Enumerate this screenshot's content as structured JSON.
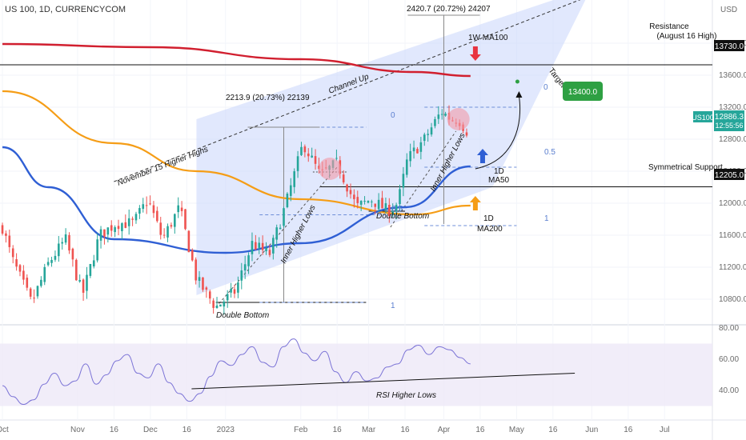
{
  "header": {
    "symbol_title": "US 100, 1D, CURRENCYCOM",
    "currency": "USD"
  },
  "colors": {
    "bull": "#26a69a",
    "bear": "#ef5350",
    "ma100w": "#d11f2f",
    "ma200": "#f59d16",
    "ma50": "#2f5fd4",
    "rsi": "#7b73d6",
    "channel": "#c9d6fb",
    "badge": "#2ea043",
    "priceTag": "#26a69a"
  },
  "chart_data": [
    {
      "type": "candlestick",
      "symbol": "US100",
      "timeframe": "1D",
      "y_axis": {
        "min": 10400,
        "max": 14400,
        "ticks": [
          10800,
          11200,
          11600,
          12000,
          12400,
          12800,
          13200,
          13600,
          14000
        ],
        "tick_labels": [
          "10800.0",
          "11200.0",
          "11600.0",
          "12000.0",
          "12400.0",
          "12800.0",
          "13200.0",
          "13600.0",
          "14000.0"
        ]
      },
      "x_axis": {
        "start": "2022-10-01",
        "end": "2023-07-10",
        "tick_labels": [
          {
            "date": "2022-10-01",
            "label": "Oct"
          },
          {
            "date": "2022-11-01",
            "label": "Nov"
          },
          {
            "date": "2022-11-16",
            "label": "16"
          },
          {
            "date": "2022-12-01",
            "label": "Dec"
          },
          {
            "date": "2022-12-16",
            "label": "16"
          },
          {
            "date": "2023-01-01",
            "label": "2023"
          },
          {
            "date": "2023-02-01",
            "label": "Feb"
          },
          {
            "date": "2023-02-16",
            "label": "16"
          },
          {
            "date": "2023-03-01",
            "label": "Mar"
          },
          {
            "date": "2023-03-16",
            "label": "16"
          },
          {
            "date": "2023-04-01",
            "label": "Apr"
          },
          {
            "date": "2023-04-16",
            "label": "16"
          },
          {
            "date": "2023-05-01",
            "label": "May"
          },
          {
            "date": "2023-05-16",
            "label": "16"
          },
          {
            "date": "2023-06-01",
            "label": "Jun"
          },
          {
            "date": "2023-06-16",
            "label": "16"
          },
          {
            "date": "2023-07-01",
            "label": "Jul"
          }
        ]
      },
      "price_path": [
        {
          "x": "2022-10-01",
          "y": 11700
        },
        {
          "x": "2022-10-05",
          "y": 11300
        },
        {
          "x": "2022-10-13",
          "y": 10750
        },
        {
          "x": "2022-10-20",
          "y": 11250
        },
        {
          "x": "2022-10-27",
          "y": 11550
        },
        {
          "x": "2022-11-03",
          "y": 10850
        },
        {
          "x": "2022-11-10",
          "y": 11600
        },
        {
          "x": "2022-11-17",
          "y": 11750
        },
        {
          "x": "2022-11-24",
          "y": 11750
        },
        {
          "x": "2022-11-30",
          "y": 12050
        },
        {
          "x": "2022-12-06",
          "y": 11550
        },
        {
          "x": "2022-12-13",
          "y": 11950
        },
        {
          "x": "2022-12-20",
          "y": 11050
        },
        {
          "x": "2022-12-28",
          "y": 10700
        },
        {
          "x": "2023-01-05",
          "y": 10900
        },
        {
          "x": "2023-01-12",
          "y": 11500
        },
        {
          "x": "2023-01-19",
          "y": 11350
        },
        {
          "x": "2023-01-26",
          "y": 12000
        },
        {
          "x": "2023-02-02",
          "y": 12750
        },
        {
          "x": "2023-02-09",
          "y": 12350
        },
        {
          "x": "2023-02-16",
          "y": 12500
        },
        {
          "x": "2023-02-24",
          "y": 11950
        },
        {
          "x": "2023-03-02",
          "y": 12050
        },
        {
          "x": "2023-03-09",
          "y": 11900
        },
        {
          "x": "2023-03-13",
          "y": 12000
        },
        {
          "x": "2023-03-17",
          "y": 12550
        },
        {
          "x": "2023-03-24",
          "y": 12800
        },
        {
          "x": "2023-03-31",
          "y": 13150
        },
        {
          "x": "2023-04-04",
          "y": 13050
        },
        {
          "x": "2023-04-07",
          "y": 13050
        },
        {
          "x": "2023-04-11",
          "y": 12880
        }
      ],
      "moving_averages": [
        {
          "name": "1W MA100",
          "points": [
            {
              "x": "2022-10-01",
              "y": 13990
            },
            {
              "x": "2022-12-01",
              "y": 13950
            },
            {
              "x": "2023-02-01",
              "y": 13800
            },
            {
              "x": "2023-03-20",
              "y": 13640
            },
            {
              "x": "2023-04-12",
              "y": 13590
            }
          ]
        },
        {
          "name": "1D MA200",
          "points": [
            {
              "x": "2022-10-01",
              "y": 13400
            },
            {
              "x": "2022-11-16",
              "y": 12750
            },
            {
              "x": "2022-12-20",
              "y": 12400
            },
            {
              "x": "2023-02-01",
              "y": 12050
            },
            {
              "x": "2023-03-20",
              "y": 11860
            },
            {
              "x": "2023-04-12",
              "y": 11970
            }
          ]
        },
        {
          "name": "1D MA50",
          "points": [
            {
              "x": "2022-10-01",
              "y": 12700
            },
            {
              "x": "2022-10-20",
              "y": 12200
            },
            {
              "x": "2022-11-16",
              "y": 11550
            },
            {
              "x": "2023-01-01",
              "y": 11380
            },
            {
              "x": "2023-02-01",
              "y": 11500
            },
            {
              "x": "2023-03-16",
              "y": 11950
            },
            {
              "x": "2023-04-12",
              "y": 12460
            }
          ]
        }
      ],
      "channel": {
        "points": [
          {
            "x": "2022-12-20",
            "y": 10850
          },
          {
            "x": "2023-04-21",
            "y": 12200
          },
          {
            "x": "2023-06-01",
            "y": 14700
          },
          {
            "x": "2022-12-20",
            "y": 13050
          }
        ]
      },
      "horizontal_levels": [
        {
          "label": "Resistance",
          "sub_label": "(August 16 High)",
          "value": 13730,
          "tag": "13730.0"
        },
        {
          "label": "Symmetrical Support",
          "value": 12205,
          "tag": "12205.0"
        }
      ],
      "annotations": [
        {
          "text": "November 15 Higher Highs"
        },
        {
          "text": "Channel Up"
        },
        {
          "text": "Inner Higher Lows"
        },
        {
          "text": "Inner Higher Lows"
        },
        {
          "text": "Double Bottom"
        },
        {
          "text": "Double Bottom"
        },
        {
          "text": "2213.9 (20.73%) 22139"
        },
        {
          "text": "2420.7 (20.72%) 24207"
        },
        {
          "text": "1W MA100"
        },
        {
          "text": "1D",
          "text2": "MA50"
        },
        {
          "text": "1D",
          "text2": "MA200"
        },
        {
          "text": "Target"
        }
      ],
      "fib_labels": [
        "0",
        "1",
        "0",
        "0.5",
        "1",
        "0.5"
      ],
      "target_badge": "13400.0",
      "last_price": {
        "symbol": "US100",
        "value": "12886.3",
        "countdown": "12:55:56"
      }
    },
    {
      "type": "line",
      "name": "RSI",
      "y_axis": {
        "ticks": [
          40,
          60,
          80
        ],
        "tick_labels": [
          "40.00",
          "60.00",
          "80.00"
        ],
        "band": [
          30,
          70
        ]
      },
      "series": [
        {
          "values": [
            43,
            36,
            31,
            34,
            44,
            51,
            43,
            46,
            57,
            44,
            50,
            59,
            63,
            51,
            48,
            57,
            45,
            38,
            33,
            38,
            49,
            59,
            56,
            63,
            68,
            58,
            55,
            68,
            73,
            64,
            59,
            65,
            52,
            45,
            52,
            46,
            48,
            55,
            57,
            66,
            69,
            63,
            68,
            66,
            61,
            57
          ]
        }
      ],
      "trendline_annotation": "RSI Higher Lows"
    }
  ]
}
